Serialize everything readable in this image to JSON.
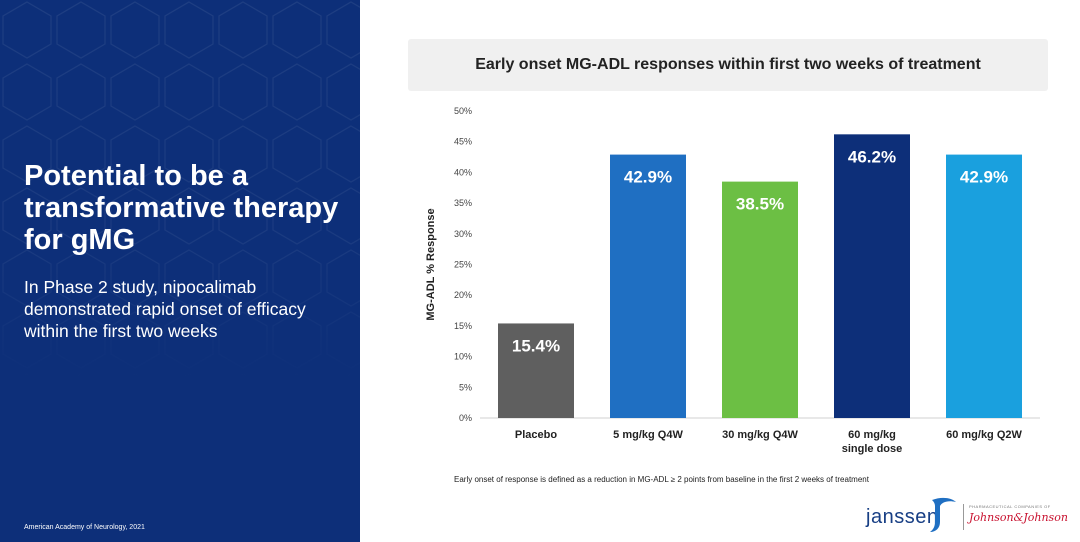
{
  "left_panel": {
    "headline": "Potential to be a transformative therapy for gMG",
    "subhead": "In Phase 2 study, nipocalimab demonstrated rapid onset of efficacy within the first two weeks",
    "source": "American Academy of Neurology, 2021",
    "background_color": "#0d2f79"
  },
  "footnote": "Early onset of response is defined as a reduction in MG-ADL ≥ 2 points from baseline in the first 2 weeks of treatment",
  "logo": {
    "janssen": "janssen",
    "pharma_line": "PHARMACEUTICAL COMPANIES OF",
    "jj": "Johnson&Johnson",
    "icon": "janssen-swoosh-icon"
  },
  "chart_data": {
    "type": "bar",
    "title": "Early onset MG-ADL responses within first two weeks of treatment",
    "ylabel": "MG-ADL % Response",
    "xlabel": "",
    "categories": [
      [
        "Placebo"
      ],
      [
        "5 mg/kg Q4W"
      ],
      [
        "30 mg/kg Q4W"
      ],
      [
        "60 mg/kg",
        "single dose"
      ],
      [
        "60 mg/kg Q2W"
      ]
    ],
    "values": [
      15.4,
      42.9,
      38.5,
      46.2,
      42.9
    ],
    "data_labels": [
      "15.4%",
      "42.9%",
      "38.5%",
      "46.2%",
      "42.9%"
    ],
    "colors": [
      "#5f5f5f",
      "#1f6fc2",
      "#6cbf44",
      "#0d2f79",
      "#1aa0de"
    ],
    "ylim": [
      0,
      50
    ],
    "yticks": [
      0,
      5,
      10,
      15,
      20,
      25,
      30,
      35,
      40,
      45,
      50
    ],
    "ytick_labels": [
      "0%",
      "5%",
      "10%",
      "15%",
      "20%",
      "25%",
      "30%",
      "35%",
      "40%",
      "45%",
      "50%"
    ],
    "grid": false,
    "legend": "none"
  }
}
